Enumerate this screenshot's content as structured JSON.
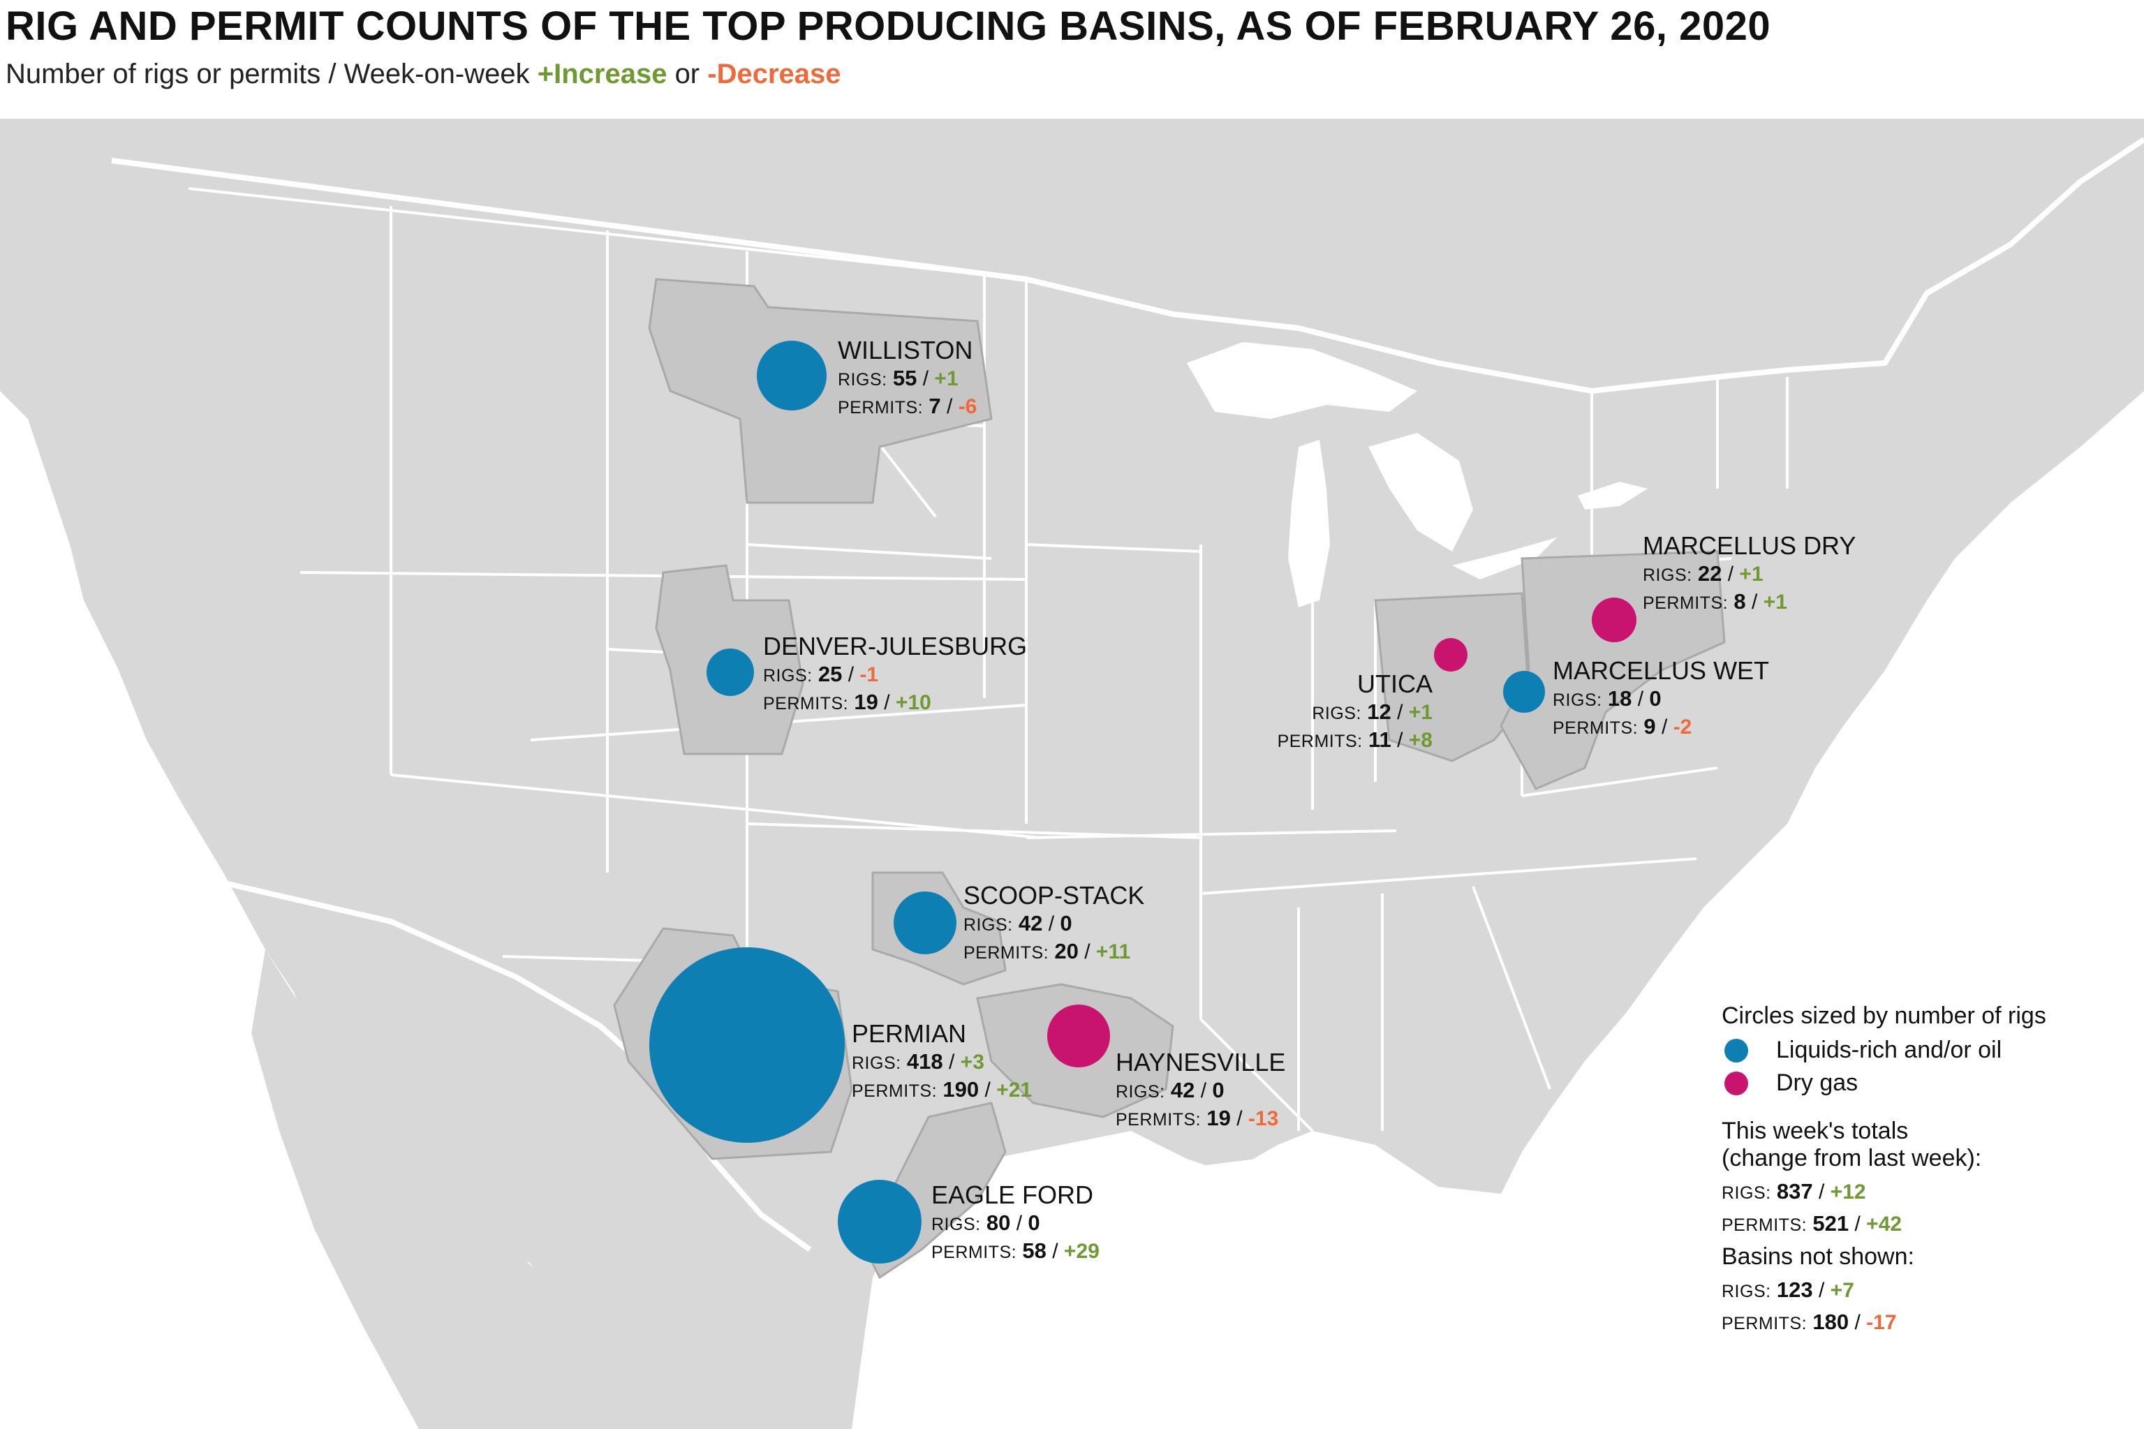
{
  "header": {
    "title": "RIG AND PERMIT COUNTS OF THE TOP PRODUCING BASINS, AS OF FEBRUARY 26, 2020",
    "subtitle_prefix": "Number of rigs or permits / Week-on-week",
    "increase_label": "+Increase",
    "or_text": "or",
    "decrease_label": "-Decrease"
  },
  "colors": {
    "liquids": "#0e7fb3",
    "dry_gas": "#c8146e",
    "increase": "#6f9a32",
    "decrease": "#ef6a3a",
    "land": "#d8d8d8",
    "basin": "#c6c6c6"
  },
  "rigs_caption": "RIGS:",
  "permits_caption": "PERMITS:",
  "basins": [
    {
      "name": "WILLISTON",
      "type": "liquids",
      "rigs": "55",
      "rigs_change": "+1",
      "permits": "7",
      "permits_change": "-6"
    },
    {
      "name": "DENVER-JULESBURG",
      "type": "liquids",
      "rigs": "25",
      "rigs_change": "-1",
      "permits": "19",
      "permits_change": "+10"
    },
    {
      "name": "UTICA",
      "type": "dry_gas",
      "rigs": "12",
      "rigs_change": "+1",
      "permits": "11",
      "permits_change": "+8"
    },
    {
      "name": "MARCELLUS DRY",
      "type": "dry_gas",
      "rigs": "22",
      "rigs_change": "+1",
      "permits": "8",
      "permits_change": "+1"
    },
    {
      "name": "MARCELLUS WET",
      "type": "liquids",
      "rigs": "18",
      "rigs_change": "0",
      "permits": "9",
      "permits_change": "-2"
    },
    {
      "name": "SCOOP-STACK",
      "type": "liquids",
      "rigs": "42",
      "rigs_change": "0",
      "permits": "20",
      "permits_change": "+11"
    },
    {
      "name": "PERMIAN",
      "type": "liquids",
      "rigs": "418",
      "rigs_change": "+3",
      "permits": "190",
      "permits_change": "+21"
    },
    {
      "name": "HAYNESVILLE",
      "type": "dry_gas",
      "rigs": "42",
      "rigs_change": "0",
      "permits": "19",
      "permits_change": "-13"
    },
    {
      "name": "EAGLE FORD",
      "type": "liquids",
      "rigs": "80",
      "rigs_change": "0",
      "permits": "58",
      "permits_change": "+29"
    }
  ],
  "legend": {
    "heading": "Circles sized by number of rigs",
    "liquids_label": "Liquids-rich and/or oil",
    "dry_gas_label": "Dry gas",
    "totals_heading_1": "This week's totals",
    "totals_heading_2": "(change from last week):",
    "totals": {
      "rigs": "837",
      "rigs_change": "+12",
      "permits": "521",
      "permits_change": "+42"
    },
    "not_shown_heading": "Basins not shown:",
    "not_shown": {
      "rigs": "123",
      "rigs_change": "+7",
      "permits": "180",
      "permits_change": "-17"
    }
  }
}
